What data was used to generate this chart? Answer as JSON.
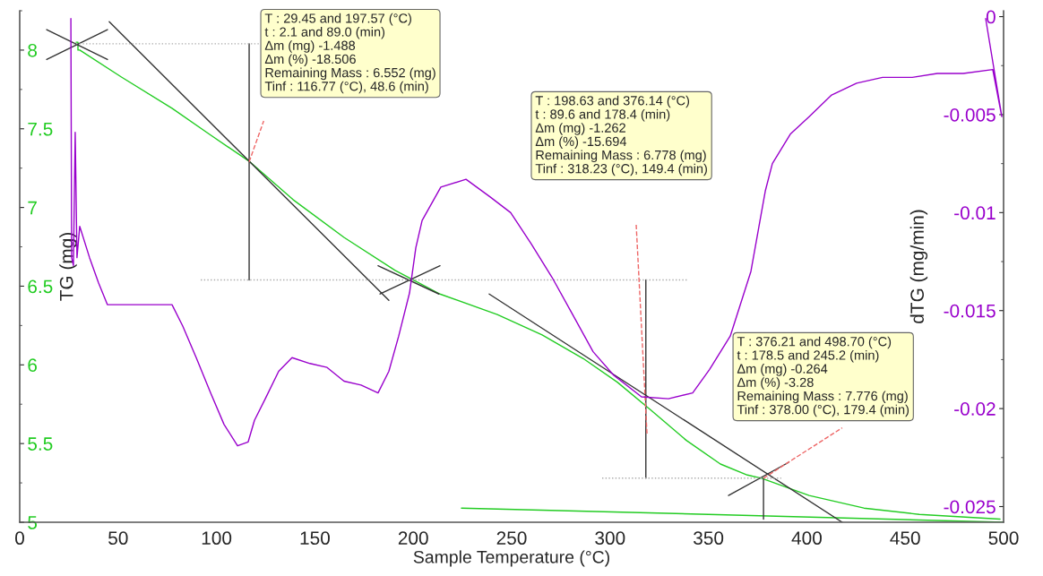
{
  "chart_data": {
    "type": "line",
    "xlabel": "Sample Temperature (°C)",
    "ylabel": "TG (mg)",
    "y2label": "dTG (mg/min)",
    "xlim": [
      0,
      500
    ],
    "xticks": [
      0,
      50,
      100,
      150,
      200,
      250,
      300,
      350,
      400,
      450,
      500
    ],
    "ylim": [
      5,
      8.25
    ],
    "yticks": [
      5,
      5.5,
      6,
      6.5,
      7,
      7.5,
      8
    ],
    "y2lim": [
      -0.0258,
      0.0003
    ],
    "y2ticks": [
      0,
      -0.005,
      -0.01,
      -0.015,
      -0.02,
      -0.025
    ],
    "grid": false,
    "marker": "none",
    "line_style": "solid",
    "series": [
      {
        "color": "#22cc22",
        "axis": "y",
        "x": [
          28.7,
          29.6,
          29.6,
          30.5,
          51.5,
          77.4,
          97.0,
          117.0,
          138.9,
          164.8,
          190.8,
          199.9,
          213.6,
          242.7,
          265.5,
          286.4,
          303.7,
          321.0,
          338.8,
          356.1,
          369.8,
          377.0,
          401.2,
          429.0,
          457.2,
          498.2
        ],
        "values": [
          8.05,
          8.05,
          8.0,
          8.0,
          7.83,
          7.63,
          7.46,
          7.29,
          7.05,
          6.81,
          6.6,
          6.54,
          6.45,
          6.32,
          6.19,
          6.04,
          5.89,
          5.71,
          5.52,
          5.37,
          5.3,
          5.28,
          5.17,
          5.09,
          5.05,
          5.02
        ]
      },
      {
        "color": "#22cc22",
        "axis": "y",
        "x": [
          224.5,
          350,
          500
        ],
        "values": [
          5.09,
          5.05,
          5.0
        ]
      },
      {
        "color": "#9900cc",
        "axis": "y2",
        "x": [
          26.0,
          26.4,
          27.3,
          28.2,
          29.1,
          30.5,
          35.5,
          40.1,
          44.6,
          58.3,
          77.4,
          82.9,
          89.7,
          97.0,
          103.8,
          110.7,
          116.1,
          119.3,
          124.8,
          131.6,
          138.4,
          147.5,
          156.2,
          164.8,
          173.5,
          182.1,
          187.6,
          192.6,
          198.1,
          201.3,
          204.5,
          214.0,
          226.8,
          239.1,
          249.5,
          260.0,
          270.5,
          281.0,
          291.4,
          301.9,
          316.0,
          329.7,
          342.0,
          350.6,
          361.1,
          371.6,
          378.9,
          382.5,
          391.6,
          401.2,
          412.6,
          425.3,
          438.5,
          453.6,
          466.3,
          479.5,
          494.5,
          499.1,
          490.9
        ],
        "values": [
          -0.0001,
          -0.0123,
          -0.0127,
          -0.0059,
          -0.0123,
          -0.0107,
          -0.0123,
          -0.0136,
          -0.0147,
          -0.0147,
          -0.0147,
          -0.0158,
          -0.0174,
          -0.0192,
          -0.0208,
          -0.0219,
          -0.0217,
          -0.0206,
          -0.0195,
          -0.0181,
          -0.0174,
          -0.0177,
          -0.0179,
          -0.0186,
          -0.0188,
          -0.0192,
          -0.0181,
          -0.0163,
          -0.0141,
          -0.0118,
          -0.0104,
          -0.0087,
          -0.0083,
          -0.0092,
          -0.01,
          -0.0116,
          -0.0133,
          -0.0152,
          -0.0171,
          -0.0183,
          -0.0194,
          -0.0195,
          -0.0192,
          -0.018,
          -0.0163,
          -0.013,
          -0.0089,
          -0.0075,
          -0.006,
          -0.0051,
          -0.004,
          -0.0034,
          -0.0031,
          -0.0031,
          -0.0029,
          -0.0029,
          -0.0027,
          -0.0051,
          -0.0001
        ]
      },
      {
        "color": "#333333",
        "axis": "y",
        "x": [
          45.5,
          187.6
        ],
        "values": [
          8.18,
          6.41
        ]
      },
      {
        "color": "#333333",
        "axis": "y",
        "x": [
          182.1,
          213.1
        ],
        "values": [
          6.63,
          6.45
        ]
      },
      {
        "color": "#333333",
        "axis": "y",
        "x": [
          183.1,
          213.6
        ],
        "values": [
          6.45,
          6.63
        ]
      },
      {
        "color": "#333333",
        "axis": "y",
        "x": [
          238.6,
          418.0
        ],
        "values": [
          6.45,
          5.0
        ]
      },
      {
        "color": "#333333",
        "axis": "y",
        "x": [
          13.7,
          44.6
        ],
        "values": [
          8.13,
          7.94
        ]
      },
      {
        "color": "#333333",
        "axis": "y",
        "x": [
          13.7,
          44.6
        ],
        "values": [
          7.94,
          8.13
        ]
      },
      {
        "color": "#333333",
        "axis": "y",
        "x": [
          360.2,
          390.7
        ],
        "values": [
          5.17,
          5.38
        ]
      },
      {
        "color": "#333333",
        "axis": "y",
        "x": [
          116.6,
          116.6
        ],
        "values": [
          8.04,
          6.54
        ]
      },
      {
        "color": "#333333",
        "axis": "y",
        "x": [
          318.2,
          318.2
        ],
        "values": [
          6.54,
          5.28
        ]
      },
      {
        "color": "#333333",
        "axis": "y",
        "x": [
          378.0,
          378.0
        ],
        "values": [
          5.28,
          5.02
        ]
      },
      {
        "color": "#aaaaaa",
        "axis": "y",
        "line_style": "dotted",
        "x": [
          27.0,
          122.0
        ],
        "values": [
          8.04,
          8.04
        ]
      },
      {
        "color": "#aaaaaa",
        "axis": "y",
        "line_style": "dotted",
        "x": [
          92.0,
          340.0
        ],
        "values": [
          6.54,
          6.54
        ]
      },
      {
        "color": "#aaaaaa",
        "axis": "y",
        "line_style": "dotted",
        "x": [
          296.0,
          387.0
        ],
        "values": [
          5.28,
          5.28
        ]
      },
      {
        "color": "#ee6666",
        "axis": "y",
        "line_style": "dashed",
        "x": [
          116.6,
          124.0
        ],
        "values": [
          7.29,
          7.55
        ]
      },
      {
        "color": "#ee6666",
        "axis": "y",
        "line_style": "dashed",
        "x": [
          313.3,
          318.8
        ],
        "values": [
          6.89,
          5.56
        ]
      },
      {
        "color": "#ee6666",
        "axis": "y",
        "line_style": "dashed",
        "x": [
          378.0,
          418.0
        ],
        "values": [
          5.28,
          5.6
        ]
      }
    ],
    "annotations": [
      "T : 29.45 and 197.57 (°C)\nt : 2.1 and 89.0 (min)\nΔm (mg) -1.488\nΔm (%) -18.506\nRemaining Mass : 6.552 (mg)\nTinf : 116.77 (°C), 48.6 (min)",
      "T : 198.63 and 376.14 (°C)\nt : 89.6 and 178.4 (min)\nΔm (mg) -1.262\nΔm (%) -15.694\nRemaining Mass : 6.778 (mg)\nTinf : 318.23 (°C), 149.4 (min)",
      "T : 376.21 and 498.70 (°C)\nt : 178.5 and 245.2 (min)\nΔm (mg) -0.264\nΔm (%) -3.28\nRemaining Mass : 7.776 (mg)\nTinf : 378.00 (°C), 179.4 (min)"
    ]
  }
}
